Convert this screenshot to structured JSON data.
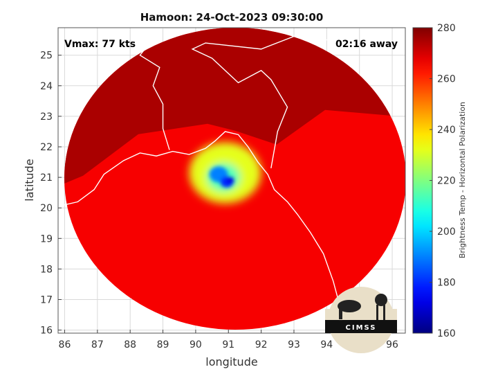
{
  "chart_data": {
    "type": "heatmap",
    "title": "Hamoon: 24-Oct-2023 09:30:00",
    "xlabel": "longitude",
    "ylabel": "latitude",
    "xlim": [
      85.8,
      96.4
    ],
    "ylim": [
      15.9,
      25.9
    ],
    "xticks": [
      86,
      87,
      88,
      89,
      90,
      91,
      92,
      93,
      94,
      95,
      96
    ],
    "yticks": [
      16,
      17,
      18,
      19,
      20,
      21,
      22,
      23,
      24,
      25
    ],
    "grid": true,
    "annotations": {
      "vmax": "Vmax: 77 kts",
      "time_away": "02:16 away"
    },
    "storm_center": {
      "lon": 90.8,
      "lat": 20.95
    },
    "colorbar": {
      "label": "Brightness Temp - Horizontal Polarization",
      "range": [
        160,
        280
      ],
      "ticks": [
        160,
        180,
        200,
        220,
        240,
        260,
        280
      ],
      "colormap": "jet"
    },
    "swath": {
      "center": {
        "lon": 91.2,
        "lat": 20.8
      },
      "background_temp": 266,
      "land_temp": 275,
      "north_limit_lat": 22.3
    },
    "cold_features": [
      {
        "lon": 90.9,
        "lat": 21.15,
        "temp": 232,
        "radius_deg": 1.1
      },
      {
        "lon": 90.85,
        "lat": 21.0,
        "temp": 213,
        "radius_deg": 0.5
      },
      {
        "lon": 90.7,
        "lat": 21.1,
        "temp": 190,
        "radius_deg": 0.28
      },
      {
        "lon": 90.95,
        "lat": 20.85,
        "temp": 180,
        "radius_deg": 0.2
      },
      {
        "lon": 91.05,
        "lat": 20.9,
        "temp": 172,
        "radius_deg": 0.12
      }
    ]
  },
  "logo": {
    "text": "CIMSS"
  },
  "colors": {
    "land_line": "#ffffff",
    "grid": "#d9d9d9",
    "background": "#ffffff"
  }
}
